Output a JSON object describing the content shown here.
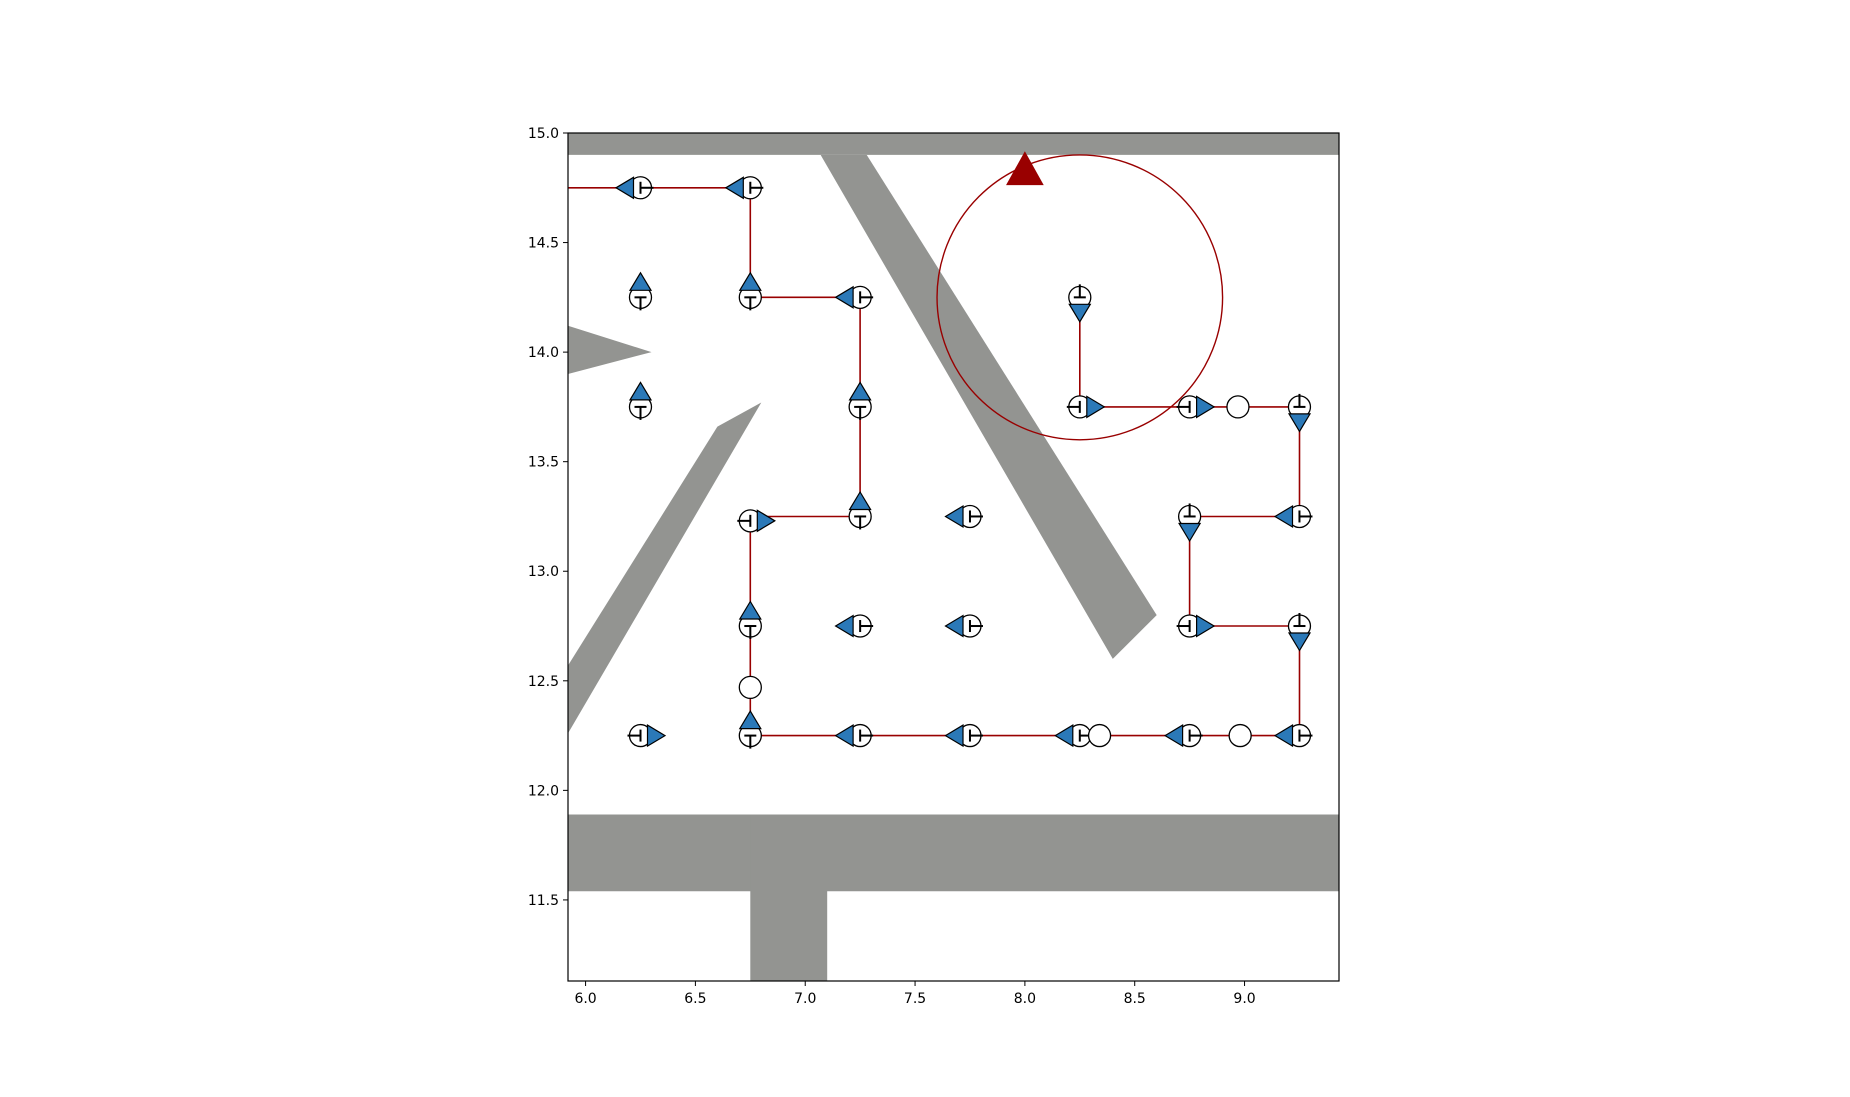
{
  "colors": {
    "obstacle": "#939491",
    "path": "#990000",
    "marker_fill": "#2b79b8",
    "marker_edge": "#000000",
    "goal": "#990000"
  },
  "chart_data": {
    "type": "scatter",
    "title": "",
    "xlabel": "",
    "ylabel": "",
    "xlim": [
      5.92,
      9.43
    ],
    "ylim": [
      11.13,
      15.0
    ],
    "grid": false,
    "legend": "none",
    "x_ticks": [
      "6.0",
      "6.5",
      "7.0",
      "7.5",
      "8.0",
      "8.5",
      "9.0"
    ],
    "y_ticks": [
      "11.5",
      "12.0",
      "12.5",
      "13.0",
      "13.5",
      "14.0",
      "14.5",
      "15.0"
    ],
    "x_tick_values": [
      6.0,
      6.5,
      7.0,
      7.5,
      8.0,
      8.5,
      9.0
    ],
    "y_tick_values": [
      11.5,
      12.0,
      12.5,
      13.0,
      13.5,
      14.0,
      14.5,
      15.0
    ],
    "obstacles": [
      [
        [
          5.92,
          14.9
        ],
        [
          9.43,
          14.9
        ],
        [
          9.43,
          15.0
        ],
        [
          5.92,
          15.0
        ]
      ],
      [
        [
          7.07,
          14.9
        ],
        [
          7.28,
          14.9
        ],
        [
          8.6,
          12.8
        ],
        [
          8.4,
          12.6
        ]
      ],
      [
        [
          5.92,
          14.12
        ],
        [
          6.3,
          14.0
        ],
        [
          5.92,
          13.9
        ]
      ],
      [
        [
          6.6,
          13.66
        ],
        [
          6.8,
          13.77
        ],
        [
          5.92,
          12.26
        ],
        [
          5.92,
          12.57
        ]
      ],
      [
        [
          5.92,
          11.54
        ],
        [
          9.43,
          11.54
        ],
        [
          9.43,
          11.89
        ],
        [
          5.92,
          11.89
        ]
      ],
      [
        [
          6.75,
          11.13
        ],
        [
          7.1,
          11.13
        ],
        [
          7.1,
          11.89
        ],
        [
          6.75,
          11.89
        ]
      ]
    ],
    "path_series": [
      {
        "x": [
          5.92,
          6.75,
          6.75,
          7.25,
          7.25,
          6.75,
          6.75,
          9.25,
          9.25,
          8.75,
          8.75,
          9.25,
          9.25,
          8.25,
          8.25
        ],
        "y": [
          14.75,
          14.75,
          14.25,
          14.25,
          13.25,
          13.25,
          12.25,
          12.25,
          12.75,
          12.75,
          13.25,
          13.25,
          13.75,
          13.75,
          14.25
        ]
      }
    ],
    "circle_region": {
      "cx": 8.25,
      "cy": 14.25,
      "r": 0.65
    },
    "goal_marker": {
      "x": 8.0,
      "y": 14.83
    },
    "waypoints": [
      {
        "x": 6.25,
        "y": 14.75,
        "dir": "left"
      },
      {
        "x": 6.75,
        "y": 14.75,
        "dir": "left"
      },
      {
        "x": 6.25,
        "y": 14.25,
        "dir": "up"
      },
      {
        "x": 6.75,
        "y": 14.25,
        "dir": "up"
      },
      {
        "x": 7.25,
        "y": 14.25,
        "dir": "left"
      },
      {
        "x": 6.25,
        "y": 13.75,
        "dir": "up"
      },
      {
        "x": 7.25,
        "y": 13.75,
        "dir": "up"
      },
      {
        "x": 6.75,
        "y": 13.23,
        "dir": "right"
      },
      {
        "x": 7.25,
        "y": 13.25,
        "dir": "up"
      },
      {
        "x": 7.75,
        "y": 13.25,
        "dir": "left"
      },
      {
        "x": 6.75,
        "y": 12.75,
        "dir": "up"
      },
      {
        "x": 7.25,
        "y": 12.75,
        "dir": "left"
      },
      {
        "x": 7.75,
        "y": 12.75,
        "dir": "left"
      },
      {
        "x": 6.75,
        "y": 12.47,
        "dir": "none"
      },
      {
        "x": 6.75,
        "y": 12.25,
        "dir": "up"
      },
      {
        "x": 6.25,
        "y": 12.25,
        "dir": "right"
      },
      {
        "x": 7.25,
        "y": 12.25,
        "dir": "left"
      },
      {
        "x": 7.75,
        "y": 12.25,
        "dir": "left"
      },
      {
        "x": 8.25,
        "y": 12.25,
        "dir": "left"
      },
      {
        "x": 8.34,
        "y": 12.25,
        "dir": "none"
      },
      {
        "x": 8.75,
        "y": 12.25,
        "dir": "left"
      },
      {
        "x": 8.98,
        "y": 12.25,
        "dir": "none"
      },
      {
        "x": 9.25,
        "y": 12.25,
        "dir": "left"
      },
      {
        "x": 8.75,
        "y": 12.75,
        "dir": "right"
      },
      {
        "x": 9.25,
        "y": 12.75,
        "dir": "down"
      },
      {
        "x": 8.75,
        "y": 13.25,
        "dir": "down"
      },
      {
        "x": 9.25,
        "y": 13.25,
        "dir": "left"
      },
      {
        "x": 8.25,
        "y": 13.75,
        "dir": "right"
      },
      {
        "x": 8.75,
        "y": 13.75,
        "dir": "right"
      },
      {
        "x": 8.97,
        "y": 13.75,
        "dir": "none"
      },
      {
        "x": 9.25,
        "y": 13.75,
        "dir": "down"
      },
      {
        "x": 8.25,
        "y": 14.25,
        "dir": "down"
      }
    ]
  }
}
